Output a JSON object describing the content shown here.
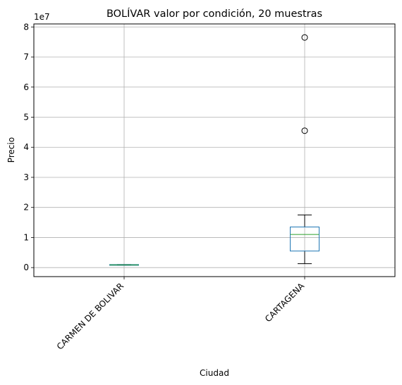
{
  "chart_data": {
    "type": "box",
    "title": "BOLÍVAR valor por condición, 20 muestras",
    "xlabel": "Ciudad",
    "ylabel": "Precio",
    "y_offset_label": "1e7",
    "y_scale": 10000000,
    "ylim": [
      -3000000,
      81000000
    ],
    "yticks": [
      0,
      1,
      2,
      3,
      4,
      5,
      6,
      7,
      8
    ],
    "grid": true,
    "colors": {
      "box": "#1f77b4",
      "median": "#2ca02c",
      "whisker": "#000000",
      "grid": "#b0b0b0"
    },
    "categories": [
      "CARMEN DE BOLIVAR",
      "CARTAGENA"
    ],
    "boxes": [
      {
        "category": "CARMEN DE BOLIVAR",
        "whisker_low": 800000,
        "q1": 800000,
        "median": 900000,
        "q3": 1000000,
        "whisker_high": 1000000,
        "outliers": []
      },
      {
        "category": "CARTAGENA",
        "whisker_low": 1300000,
        "q1": 5500000,
        "median": 11000000,
        "q3": 13500000,
        "whisker_high": 17500000,
        "outliers": [
          45500000,
          76500000
        ]
      }
    ]
  }
}
